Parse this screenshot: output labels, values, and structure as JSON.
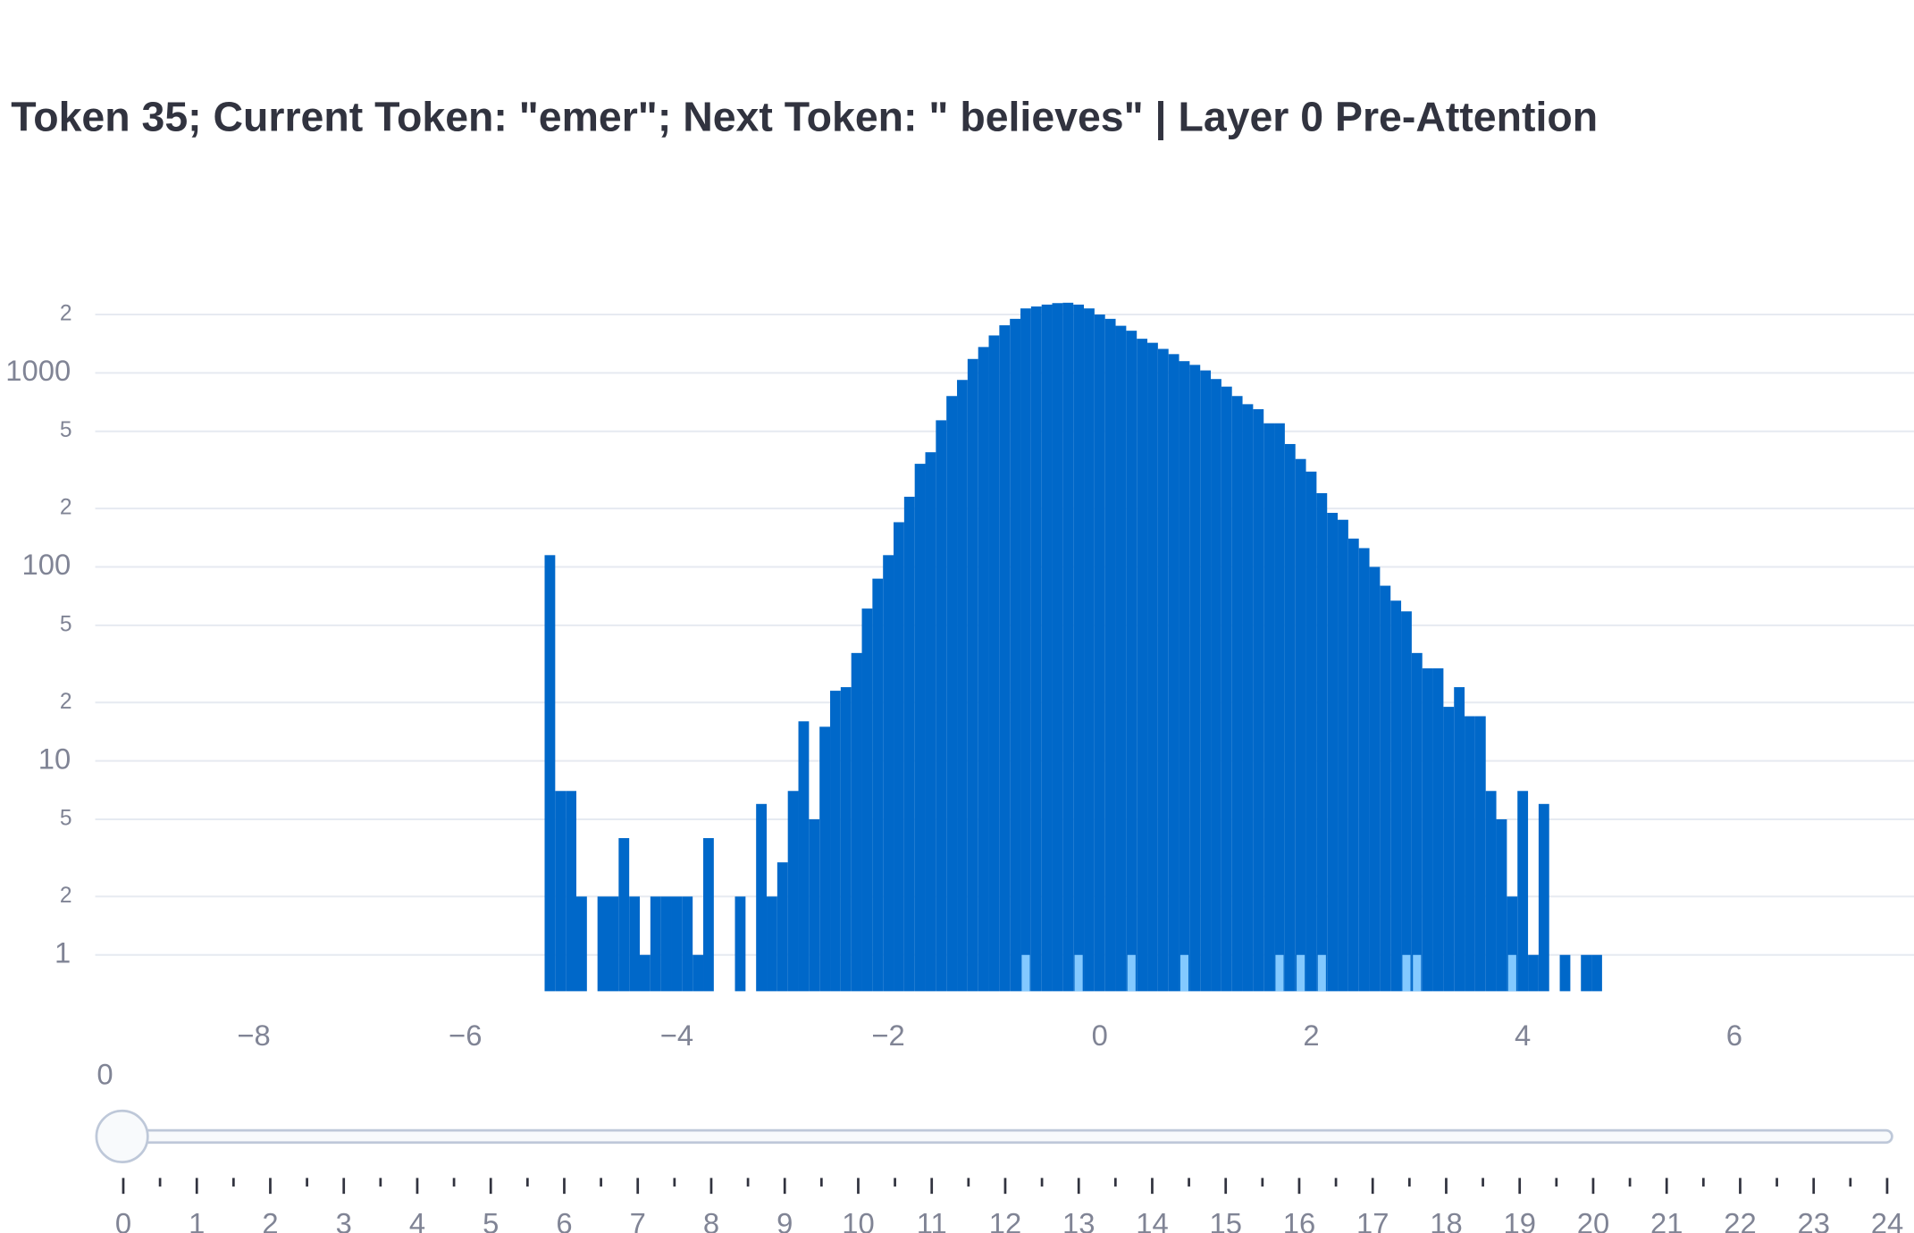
{
  "chart_data": {
    "type": "histogram",
    "title": "Token 35; Current Token: \"emer\"; Next Token: \" believes\" | Layer 0 Pre-Attention",
    "bins": [
      -5.25,
      -5.15,
      -5.05,
      -4.95,
      -4.85,
      -4.75,
      -4.65,
      -4.55,
      -4.45,
      -4.35,
      -4.25,
      -4.15,
      -4.05,
      -3.95,
      -3.85,
      -3.75,
      -3.65,
      -3.55,
      -3.45,
      -3.35,
      -3.25,
      -3.15,
      -3.05,
      -2.95,
      -2.85,
      -2.75,
      -2.65,
      -2.55,
      -2.45,
      -2.35,
      -2.25,
      -2.15,
      -2.05,
      -1.95,
      -1.85,
      -1.75,
      -1.65,
      -1.55,
      -1.45,
      -1.35,
      -1.25,
      -1.15,
      -1.05,
      -0.95,
      -0.85,
      -0.75,
      -0.65,
      -0.55,
      -0.45,
      -0.35,
      -0.25,
      -0.15,
      -0.05,
      0.05,
      0.15,
      0.25,
      0.35,
      0.45,
      0.55,
      0.65,
      0.75,
      0.85,
      0.95,
      1.05,
      1.15,
      1.25,
      1.35,
      1.45,
      1.55,
      1.65,
      1.75,
      1.85,
      1.95,
      2.05,
      2.15,
      2.25,
      2.35,
      2.45,
      2.55,
      2.65,
      2.75,
      2.85,
      2.95,
      3.05,
      3.15,
      3.25,
      3.35,
      3.45,
      3.55,
      3.65,
      3.75,
      3.85,
      3.95,
      4.05,
      4.15,
      4.25,
      4.35,
      4.45,
      4.55,
      4.65,
      4.75
    ],
    "series": [
      {
        "color": "#0068c9",
        "values": [
          115,
          7,
          7,
          2,
          0,
          2,
          2,
          4,
          2,
          1,
          2,
          2,
          2,
          2,
          1,
          4,
          0,
          0,
          2,
          0,
          6,
          2,
          3,
          7,
          16,
          5,
          15,
          23,
          24,
          36,
          61,
          87,
          115,
          170,
          230,
          340,
          390,
          570,
          760,
          920,
          1180,
          1360,
          1560,
          1760,
          1900,
          2150,
          2200,
          2250,
          2290,
          2300,
          2250,
          2150,
          2000,
          1900,
          1750,
          1650,
          1500,
          1430,
          1330,
          1250,
          1150,
          1100,
          1030,
          930,
          850,
          760,
          690,
          650,
          550,
          550,
          430,
          360,
          310,
          240,
          190,
          175,
          140,
          125,
          100,
          80,
          67,
          59,
          36,
          30,
          30,
          19,
          24,
          17,
          17,
          7,
          5,
          2,
          7,
          1,
          6,
          0,
          1,
          0,
          1,
          1
        ]
      },
      {
        "color": "#83c9ff",
        "values": [
          null,
          null,
          null,
          null,
          null,
          null,
          null,
          null,
          null,
          null,
          null,
          null,
          null,
          null,
          null,
          null,
          null,
          null,
          null,
          null,
          null,
          null,
          null,
          null,
          null,
          null,
          null,
          null,
          null,
          null,
          null,
          null,
          null,
          null,
          null,
          null,
          null,
          null,
          null,
          null,
          null,
          null,
          null,
          null,
          null,
          1,
          null,
          null,
          null,
          null,
          1,
          null,
          null,
          null,
          null,
          1,
          null,
          null,
          null,
          null,
          1,
          null,
          null,
          null,
          null,
          null,
          null,
          null,
          null,
          1,
          null,
          1,
          null,
          1,
          null,
          null,
          null,
          null,
          null,
          null,
          null,
          1,
          1,
          null,
          null,
          null,
          null,
          null,
          null,
          null,
          null,
          1,
          null,
          null,
          null,
          null,
          null,
          null,
          null,
          null
        ]
      }
    ],
    "xlim": [
      -9.5,
      7.7
    ],
    "xticks": [
      {
        "value": -8,
        "label": "−8"
      },
      {
        "value": -6,
        "label": "−6"
      },
      {
        "value": -4,
        "label": "−4"
      },
      {
        "value": -2,
        "label": "−2"
      },
      0,
      2,
      4,
      6
    ],
    "ylim": [
      0.65,
      2400
    ],
    "log_y": true,
    "grid": true,
    "yticks": [
      1,
      2,
      5,
      10,
      {
        "value": 20,
        "label": "2"
      },
      {
        "value": 50,
        "label": "5"
      },
      100,
      {
        "value": 200,
        "label": "2"
      },
      {
        "value": 500,
        "label": "5"
      },
      1000,
      {
        "value": 2000,
        "label": "2"
      }
    ]
  },
  "slider": {
    "current": "0",
    "steps": [
      "0",
      "1",
      "2",
      "3",
      "4",
      "5",
      "6",
      "7",
      "8",
      "9",
      "10",
      "11",
      "12",
      "13",
      "14",
      "15",
      "16",
      "17",
      "18",
      "19",
      "20",
      "21",
      "22",
      "23",
      "24"
    ]
  }
}
